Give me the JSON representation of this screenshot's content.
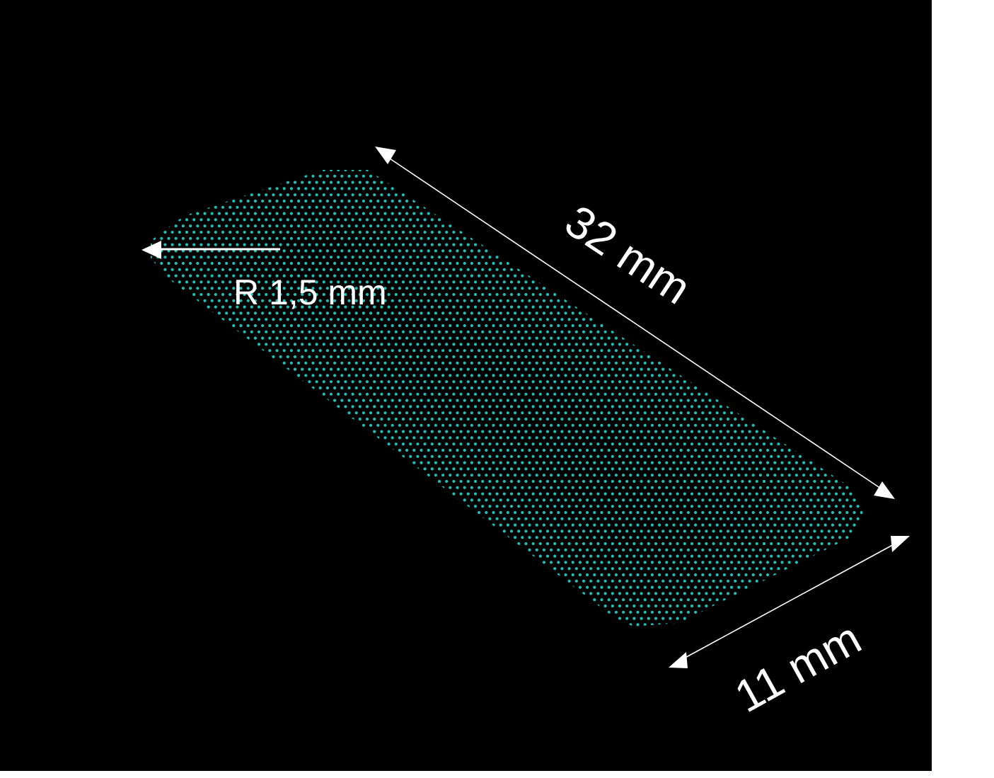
{
  "colors": {
    "background": "#000000",
    "page_margin": "#ffffff",
    "dots": "#1fbfb8",
    "annotations": "#ffffff"
  },
  "labels": {
    "length": "32 mm",
    "width": "11 mm",
    "radius": "R 1,5 mm"
  }
}
